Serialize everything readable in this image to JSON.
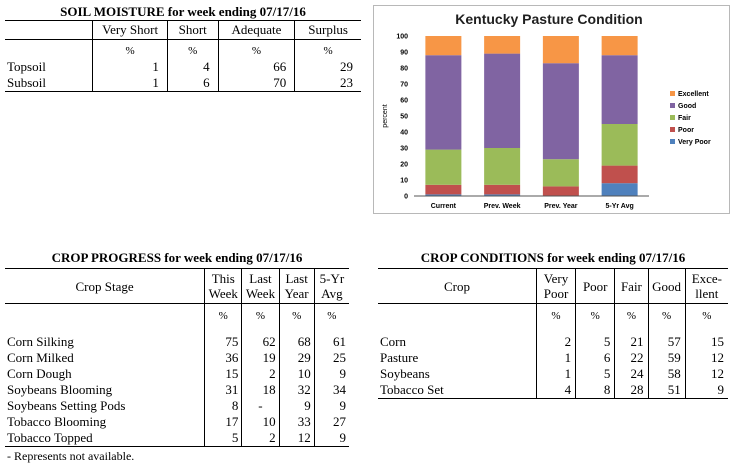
{
  "soil": {
    "title": "SOIL MOISTURE for week ending 07/17/16",
    "headers": [
      "Very Short",
      "Short",
      "Adequate",
      "Surplus"
    ],
    "unit": "%",
    "rows": [
      {
        "label": "Topsoil",
        "values": [
          "1",
          "4",
          "66",
          "29"
        ]
      },
      {
        "label": "Subsoil",
        "values": [
          "1",
          "6",
          "70",
          "23"
        ]
      }
    ]
  },
  "chart_data": {
    "type": "bar",
    "stacked": true,
    "title": "Kentucky Pasture Condition",
    "ylabel": "percent",
    "xlabel": "",
    "ylim": [
      0,
      100
    ],
    "yticks": [
      0,
      10,
      20,
      30,
      40,
      50,
      60,
      70,
      80,
      90,
      100
    ],
    "categories": [
      "Current",
      "Prev. Week",
      "Prev. Year",
      "5-Yr Avg"
    ],
    "series": [
      {
        "name": "Very Poor",
        "color": "#4f81bd",
        "values": [
          1,
          1,
          0,
          8
        ]
      },
      {
        "name": "Poor",
        "color": "#c0504d",
        "values": [
          6,
          6,
          6,
          11
        ]
      },
      {
        "name": "Fair",
        "color": "#9bbb59",
        "values": [
          22,
          23,
          17,
          26
        ]
      },
      {
        "name": "Good",
        "color": "#8064a2",
        "values": [
          59,
          59,
          60,
          43
        ]
      },
      {
        "name": "Excellent",
        "color": "#f79646",
        "values": [
          12,
          11,
          17,
          12
        ]
      }
    ],
    "legend_order": [
      "Excellent",
      "Good",
      "Fair",
      "Poor",
      "Very Poor"
    ],
    "legend_position": "right",
    "grid": false
  },
  "progress": {
    "title": "CROP PROGRESS for week ending 07/17/16",
    "stub_header": "Crop Stage",
    "headers": [
      [
        "This",
        "Week"
      ],
      [
        "Last",
        "Week"
      ],
      [
        "Last",
        "Year"
      ],
      [
        "5-Yr",
        "Avg"
      ]
    ],
    "unit": "%",
    "rows": [
      {
        "label": "Corn Silking",
        "values": [
          "75",
          "62",
          "68",
          "61"
        ]
      },
      {
        "label": "Corn Milked",
        "values": [
          "36",
          "19",
          "29",
          "25"
        ]
      },
      {
        "label": "Corn Dough",
        "values": [
          "15",
          "2",
          "10",
          "9"
        ]
      },
      {
        "label": "Soybeans Blooming",
        "values": [
          "31",
          "18",
          "32",
          "34"
        ]
      },
      {
        "label": "Soybeans Setting Pods",
        "values": [
          "8",
          "-",
          "9",
          "9"
        ]
      },
      {
        "label": "Tobacco Blooming",
        "values": [
          "17",
          "10",
          "33",
          "27"
        ]
      },
      {
        "label": "Tobacco Topped",
        "values": [
          "5",
          "2",
          "12",
          "9"
        ]
      }
    ],
    "note": "- Represents not available."
  },
  "conditions": {
    "title": "CROP CONDITIONS for week ending 07/17/16",
    "stub_header": "Crop",
    "headers": [
      [
        "Very",
        "Poor"
      ],
      [
        "Poor"
      ],
      [
        "Fair"
      ],
      [
        "Good"
      ],
      [
        "Exce-",
        "llent"
      ]
    ],
    "unit": "%",
    "rows": [
      {
        "label": "Corn",
        "values": [
          "2",
          "5",
          "21",
          "57",
          "15"
        ]
      },
      {
        "label": "Pasture",
        "values": [
          "1",
          "6",
          "22",
          "59",
          "12"
        ]
      },
      {
        "label": "Soybeans",
        "values": [
          "1",
          "5",
          "24",
          "58",
          "12"
        ]
      },
      {
        "label": "Tobacco Set",
        "values": [
          "4",
          "8",
          "28",
          "51",
          "9"
        ]
      }
    ]
  }
}
